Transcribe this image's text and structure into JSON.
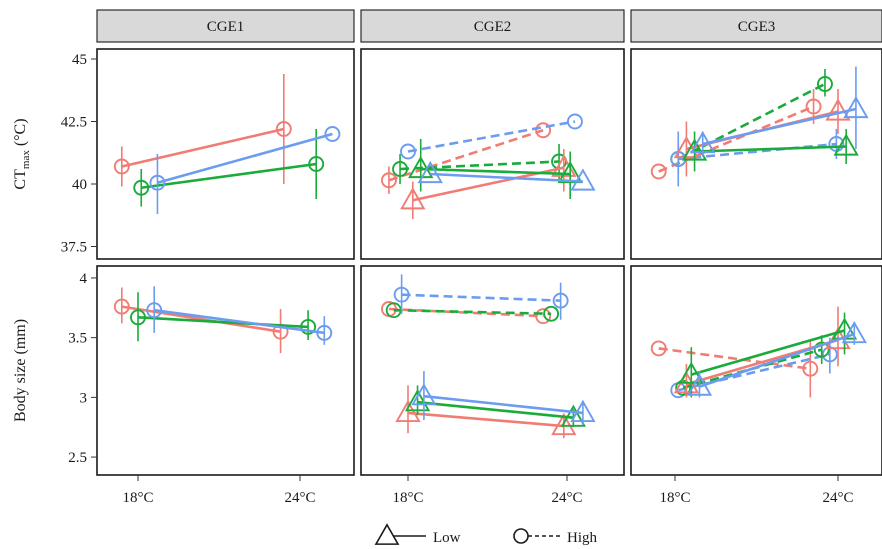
{
  "chart_data": {
    "type": "line",
    "facets_columns": [
      "CGE1",
      "CGE2",
      "CGE3"
    ],
    "x_categories": [
      "18°C",
      "24°C"
    ],
    "rows": [
      {
        "ylabel_main": "CT",
        "ylabel_sub": "max",
        "ylabel_suffix": " (°C)",
        "ylim": [
          37,
          45.4
        ],
        "yticks": [
          37.5,
          40,
          42.5,
          45
        ],
        "ytick_labels": [
          "37.5",
          "40",
          "42.5",
          "45"
        ]
      },
      {
        "ylabel": "Body size (mm)",
        "ylim": [
          2.35,
          4.1
        ],
        "yticks": [
          2.5,
          3,
          3.5,
          4
        ],
        "ytick_labels": [
          "2.5",
          "3",
          "3.5",
          "4"
        ]
      }
    ],
    "series_colors": {
      "red": "#f07c74",
      "green": "#1aab3a",
      "blue": "#6b9cf0"
    },
    "legend": {
      "position": "bottom",
      "items": [
        {
          "label": "Low",
          "shape": "triangle",
          "line": "solid"
        },
        {
          "label": "High",
          "shape": "circle",
          "line": "dashed"
        }
      ]
    },
    "series": [
      {
        "row": 0,
        "col": 0,
        "color": "red",
        "shape": "circle",
        "dash": false,
        "x": [
          -0.1,
          0.9
        ],
        "y": [
          40.7,
          42.2
        ],
        "err": [
          [
            39.9,
            41.5
          ],
          [
            40.0,
            44.4
          ]
        ]
      },
      {
        "row": 0,
        "col": 0,
        "color": "green",
        "shape": "circle",
        "dash": false,
        "x": [
          0.02,
          1.1
        ],
        "y": [
          39.85,
          40.8
        ],
        "err": [
          [
            39.1,
            40.6
          ],
          [
            39.4,
            42.2
          ]
        ]
      },
      {
        "row": 0,
        "col": 0,
        "color": "blue",
        "shape": "circle",
        "dash": false,
        "x": [
          0.12,
          1.2
        ],
        "y": [
          40.05,
          42.0
        ],
        "err": [
          [
            38.8,
            41.2
          ],
          [
            42.0,
            42.0
          ]
        ]
      },
      {
        "row": 0,
        "col": 1,
        "color": "red",
        "shape": "circle",
        "dash": true,
        "x": [
          -0.12,
          0.85
        ],
        "y": [
          40.15,
          42.15
        ],
        "err": [
          [
            39.6,
            40.7
          ],
          [
            42.15,
            42.15
          ]
        ]
      },
      {
        "row": 0,
        "col": 1,
        "color": "green",
        "shape": "circle",
        "dash": true,
        "x": [
          -0.05,
          0.95
        ],
        "y": [
          40.6,
          40.9
        ],
        "err": [
          [
            40.0,
            41.2
          ],
          [
            40.2,
            41.6
          ]
        ]
      },
      {
        "row": 0,
        "col": 1,
        "color": "blue",
        "shape": "circle",
        "dash": true,
        "x": [
          0.0,
          1.05
        ],
        "y": [
          41.3,
          42.5
        ],
        "err": [
          [
            41.3,
            41.3
          ],
          [
            42.5,
            42.5
          ]
        ]
      },
      {
        "row": 0,
        "col": 1,
        "color": "red",
        "shape": "triangle",
        "dash": false,
        "x": [
          0.03,
          0.98
        ],
        "y": [
          39.35,
          40.65
        ],
        "err": [
          [
            38.6,
            40.1
          ],
          [
            39.7,
            41.4
          ]
        ]
      },
      {
        "row": 0,
        "col": 1,
        "color": "green",
        "shape": "triangle",
        "dash": false,
        "x": [
          0.08,
          1.02
        ],
        "y": [
          40.6,
          40.4
        ],
        "err": [
          [
            39.7,
            41.8
          ],
          [
            39.4,
            41.3
          ]
        ]
      },
      {
        "row": 0,
        "col": 1,
        "color": "blue",
        "shape": "triangle",
        "dash": false,
        "x": [
          0.14,
          1.1
        ],
        "y": [
          40.4,
          40.1
        ],
        "err": [
          [
            40.4,
            40.4
          ],
          [
            40.1,
            40.1
          ]
        ]
      },
      {
        "row": 0,
        "col": 2,
        "color": "red",
        "shape": "circle",
        "dash": true,
        "x": [
          -0.1,
          0.85
        ],
        "y": [
          40.5,
          43.1
        ],
        "err": [
          [
            40.5,
            40.5
          ],
          [
            42.4,
            43.8
          ]
        ]
      },
      {
        "row": 0,
        "col": 2,
        "color": "green",
        "shape": "circle",
        "dash": true,
        "x": [
          0.02,
          0.92
        ],
        "y": [
          41.0,
          44.0
        ],
        "err": [
          [
            40.4,
            41.6
          ],
          [
            43.5,
            44.6
          ]
        ]
      },
      {
        "row": 0,
        "col": 2,
        "color": "blue",
        "shape": "circle",
        "dash": true,
        "x": [
          0.02,
          0.99
        ],
        "y": [
          41.0,
          41.6
        ],
        "err": [
          [
            39.9,
            42.1
          ],
          [
            41.0,
            42.2
          ]
        ]
      },
      {
        "row": 0,
        "col": 2,
        "color": "red",
        "shape": "triangle",
        "dash": false,
        "x": [
          0.07,
          1.0
        ],
        "y": [
          41.4,
          42.9
        ],
        "err": [
          [
            40.3,
            42.5
          ],
          [
            42.0,
            43.8
          ]
        ]
      },
      {
        "row": 0,
        "col": 2,
        "color": "green",
        "shape": "triangle",
        "dash": false,
        "x": [
          0.12,
          1.05
        ],
        "y": [
          41.3,
          41.5
        ],
        "err": [
          [
            40.5,
            42.1
          ],
          [
            40.8,
            42.2
          ]
        ]
      },
      {
        "row": 0,
        "col": 2,
        "color": "blue",
        "shape": "triangle",
        "dash": false,
        "x": [
          0.17,
          1.11
        ],
        "y": [
          41.6,
          43.0
        ],
        "err": [
          [
            41.1,
            42.1
          ],
          [
            41.4,
            44.7
          ]
        ]
      },
      {
        "row": 1,
        "col": 0,
        "color": "red",
        "shape": "circle",
        "dash": false,
        "x": [
          -0.1,
          0.88
        ],
        "y": [
          3.76,
          3.55
        ],
        "err": [
          [
            3.62,
            3.92
          ],
          [
            3.37,
            3.74
          ]
        ]
      },
      {
        "row": 1,
        "col": 0,
        "color": "green",
        "shape": "circle",
        "dash": false,
        "x": [
          0.0,
          1.05
        ],
        "y": [
          3.67,
          3.59
        ],
        "err": [
          [
            3.47,
            3.88
          ],
          [
            3.48,
            3.73
          ]
        ]
      },
      {
        "row": 1,
        "col": 0,
        "color": "blue",
        "shape": "circle",
        "dash": false,
        "x": [
          0.1,
          1.15
        ],
        "y": [
          3.73,
          3.54
        ],
        "err": [
          [
            3.54,
            3.93
          ],
          [
            3.44,
            3.68
          ]
        ]
      },
      {
        "row": 1,
        "col": 1,
        "color": "red",
        "shape": "circle",
        "dash": true,
        "x": [
          -0.12,
          0.85
        ],
        "y": [
          3.74,
          3.68
        ],
        "err": [
          [
            3.74,
            3.74
          ],
          [
            3.68,
            3.68
          ]
        ]
      },
      {
        "row": 1,
        "col": 1,
        "color": "green",
        "shape": "circle",
        "dash": true,
        "x": [
          -0.09,
          0.9
        ],
        "y": [
          3.73,
          3.7
        ],
        "err": [
          [
            3.73,
            3.73
          ],
          [
            3.7,
            3.7
          ]
        ]
      },
      {
        "row": 1,
        "col": 1,
        "color": "blue",
        "shape": "circle",
        "dash": true,
        "x": [
          -0.04,
          0.96
        ],
        "y": [
          3.86,
          3.81
        ],
        "err": [
          [
            3.7,
            4.03
          ],
          [
            3.65,
            3.96
          ]
        ]
      },
      {
        "row": 1,
        "col": 1,
        "color": "red",
        "shape": "triangle",
        "dash": false,
        "x": [
          0.0,
          0.98
        ],
        "y": [
          2.87,
          2.76
        ],
        "err": [
          [
            2.7,
            3.1
          ],
          [
            2.66,
            2.86
          ]
        ]
      },
      {
        "row": 1,
        "col": 1,
        "color": "green",
        "shape": "triangle",
        "dash": false,
        "x": [
          0.06,
          1.04
        ],
        "y": [
          2.96,
          2.83
        ],
        "err": [
          [
            2.85,
            3.1
          ],
          [
            2.75,
            2.9
          ]
        ]
      },
      {
        "row": 1,
        "col": 1,
        "color": "blue",
        "shape": "triangle",
        "dash": false,
        "x": [
          0.1,
          1.1
        ],
        "y": [
          3.01,
          2.87
        ],
        "err": [
          [
            2.81,
            3.22
          ],
          [
            2.77,
            2.97
          ]
        ]
      },
      {
        "row": 1,
        "col": 2,
        "color": "red",
        "shape": "circle",
        "dash": true,
        "x": [
          -0.1,
          0.83
        ],
        "y": [
          3.41,
          3.24
        ],
        "err": [
          [
            3.41,
            3.41
          ],
          [
            3.0,
            3.48
          ]
        ]
      },
      {
        "row": 1,
        "col": 2,
        "color": "blue",
        "shape": "circle",
        "dash": true,
        "x": [
          0.02,
          0.95
        ],
        "y": [
          3.06,
          3.36
        ],
        "err": [
          [
            3.06,
            3.06
          ],
          [
            3.2,
            3.5
          ]
        ]
      },
      {
        "row": 1,
        "col": 2,
        "color": "green",
        "shape": "circle",
        "dash": true,
        "x": [
          0.05,
          0.9
        ],
        "y": [
          3.08,
          3.4
        ],
        "err": [
          [
            3.08,
            3.08
          ],
          [
            3.28,
            3.52
          ]
        ]
      },
      {
        "row": 1,
        "col": 2,
        "color": "red",
        "shape": "triangle",
        "dash": false,
        "x": [
          0.07,
          1.0
        ],
        "y": [
          3.11,
          3.48
        ],
        "err": [
          [
            3.0,
            3.28
          ],
          [
            3.26,
            3.76
          ]
        ]
      },
      {
        "row": 1,
        "col": 2,
        "color": "green",
        "shape": "triangle",
        "dash": false,
        "x": [
          0.1,
          1.04
        ],
        "y": [
          3.19,
          3.56
        ],
        "err": [
          [
            3.0,
            3.42
          ],
          [
            3.36,
            3.71
          ]
        ]
      },
      {
        "row": 1,
        "col": 2,
        "color": "blue",
        "shape": "triangle",
        "dash": false,
        "x": [
          0.15,
          1.1
        ],
        "y": [
          3.09,
          3.53
        ],
        "err": [
          [
            3.0,
            3.22
          ],
          [
            3.44,
            3.62
          ]
        ]
      }
    ]
  }
}
